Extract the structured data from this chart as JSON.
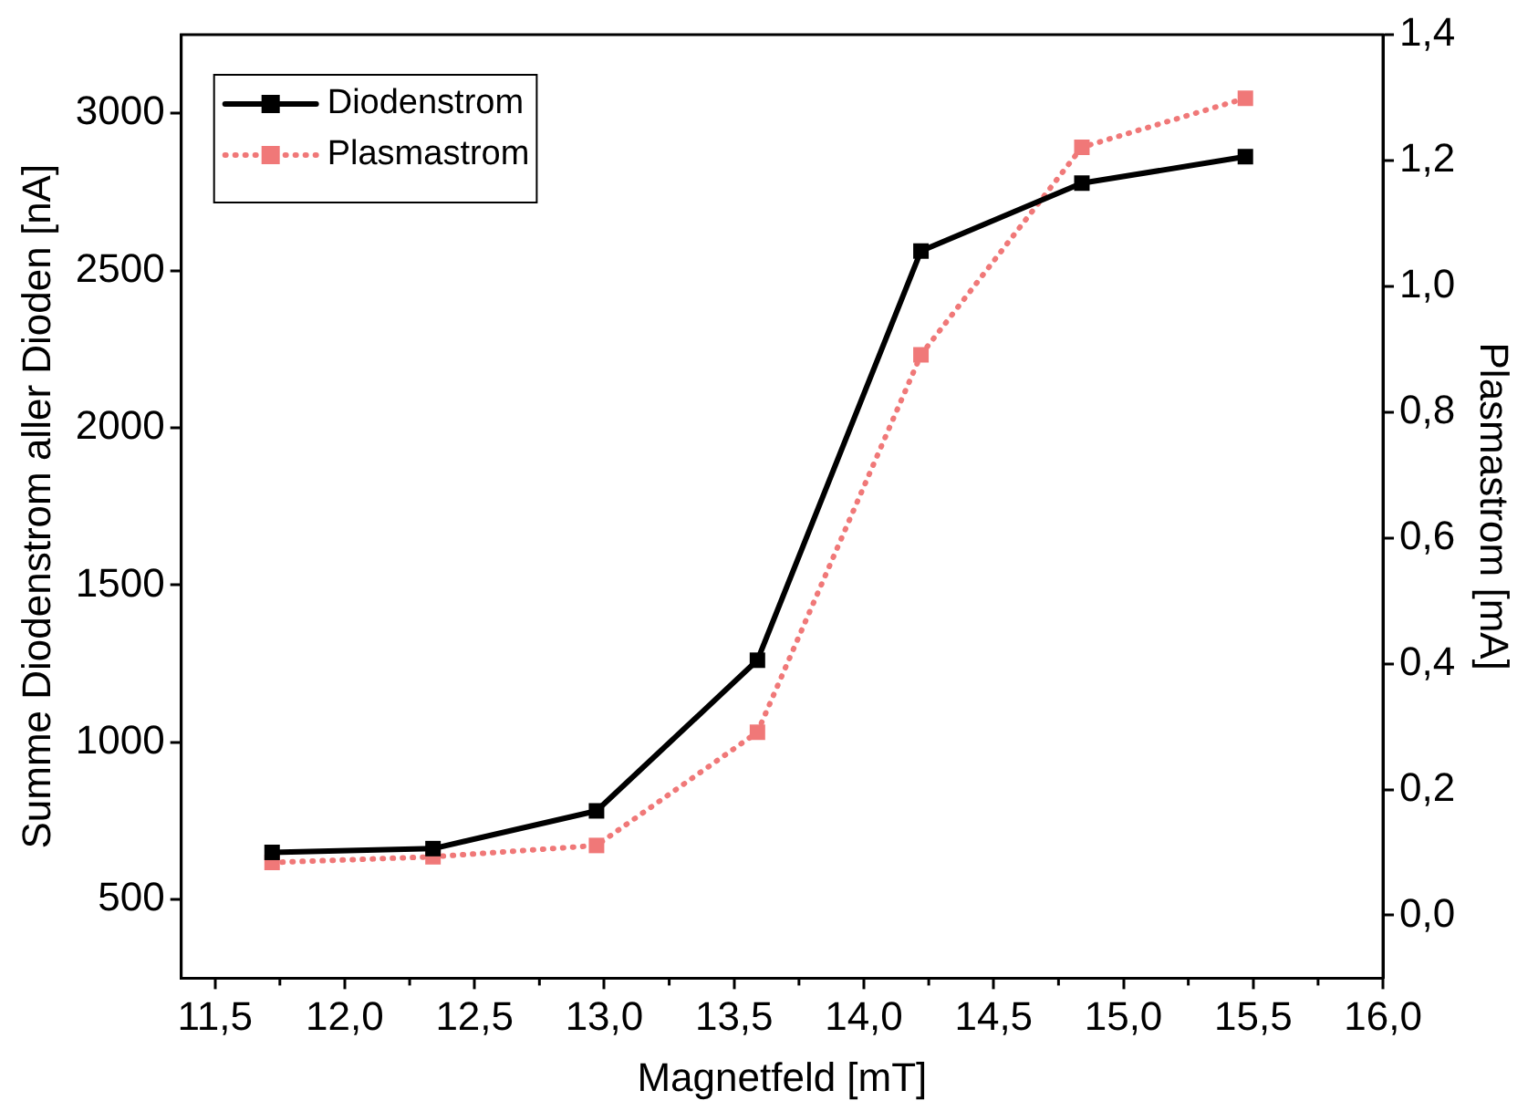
{
  "chart_data": {
    "type": "line",
    "xlabel": "Magnetfeld [mT]",
    "ylabel": "Summe Diodenstrom aller Dioden [nA]",
    "y2label": "Plasmastrom [mA]",
    "x": [
      11.72,
      12.34,
      12.97,
      13.59,
      14.22,
      14.84,
      15.47
    ],
    "series": [
      {
        "name": "Diodenstrom",
        "color": "#000000",
        "values": [
          650,
          662,
          782,
          1261,
          2562,
          2778,
          2862
        ],
        "line_style": "solid"
      },
      {
        "name": "Plasmastrom",
        "color": "#f07878",
        "values": [
          0.084,
          0.093,
          0.111,
          0.291,
          0.891,
          1.221,
          1.299
        ],
        "axis": "y2",
        "line_style": "dotted"
      }
    ],
    "xlim": [
      11.37,
      16.0
    ],
    "xticks": [
      {
        "value": 11.5,
        "label": "11,5"
      },
      {
        "value": 12,
        "label": "12,0"
      },
      {
        "value": 12.5,
        "label": "12,5"
      },
      {
        "value": 13,
        "label": "13,0"
      },
      {
        "value": 13.5,
        "label": "13,5"
      },
      {
        "value": 14,
        "label": "14,0"
      },
      {
        "value": 14.5,
        "label": "14,5"
      },
      {
        "value": 15,
        "label": "15,0"
      },
      {
        "value": 15.5,
        "label": "15,5"
      },
      {
        "value": 16,
        "label": "16,0"
      }
    ],
    "ylim": [
      250,
      3250
    ],
    "yticks": [
      500,
      1000,
      1500,
      2000,
      2500,
      3000
    ],
    "y2lim": [
      -0.1,
      1.4
    ],
    "y2ticks": [
      {
        "value": 0,
        "label": "0,0"
      },
      {
        "value": 0.2,
        "label": "0,2"
      },
      {
        "value": 0.4,
        "label": "0,4"
      },
      {
        "value": 0.6,
        "label": "0,6"
      },
      {
        "value": 0.8,
        "label": "0,8"
      },
      {
        "value": 1.0,
        "label": "1,0"
      },
      {
        "value": 1.2,
        "label": "1,2"
      },
      {
        "value": 1.4,
        "label": "1,4"
      }
    ],
    "marker": "square",
    "legend": "top left",
    "grid": false
  }
}
